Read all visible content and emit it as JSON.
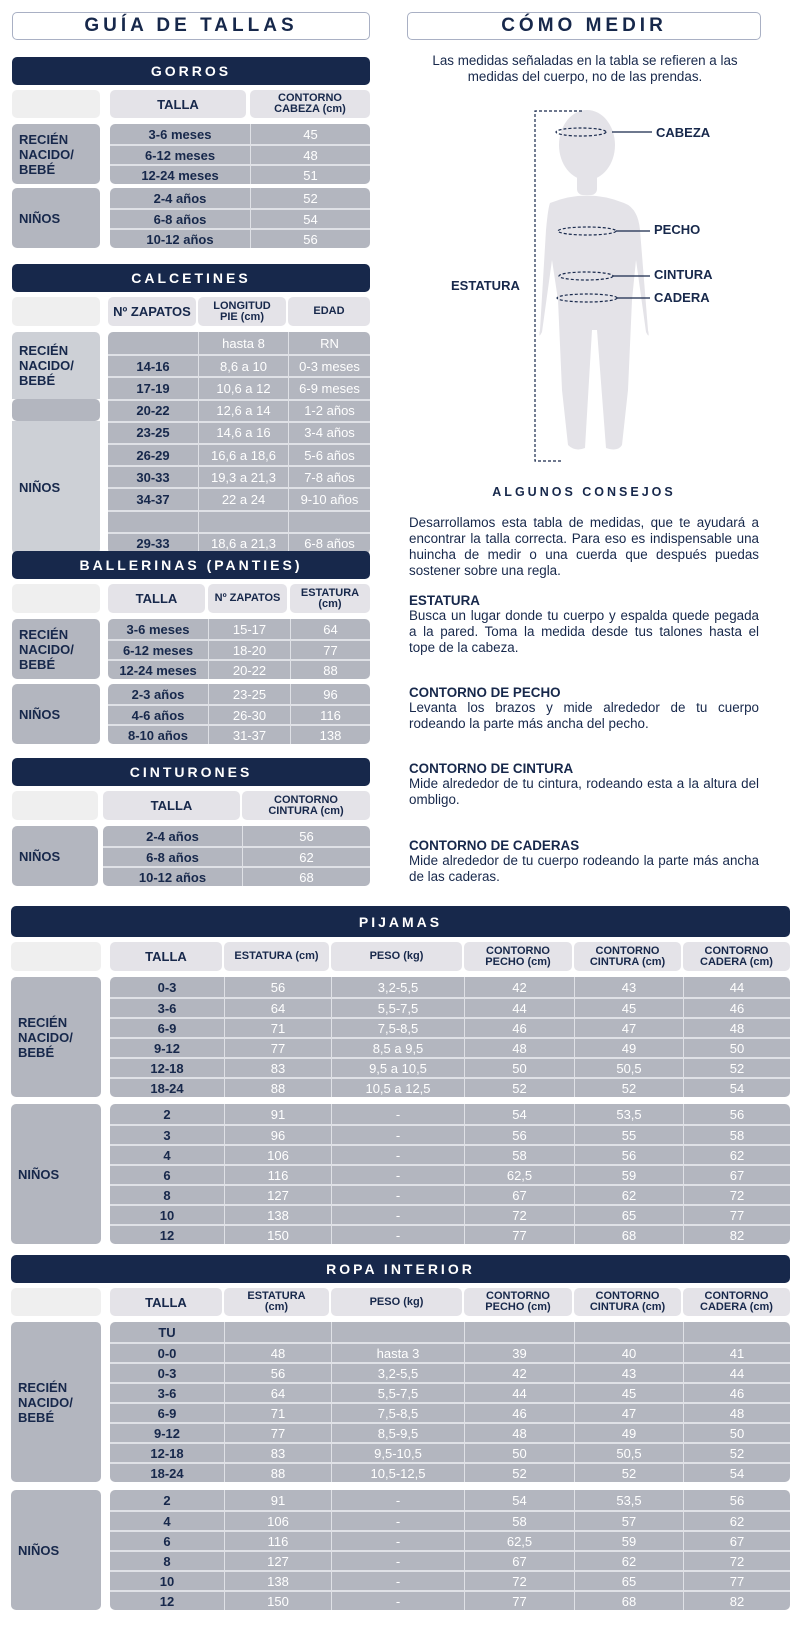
{
  "guide_title": "GUÍA DE TALLAS",
  "how_to_measure": {
    "title": "CÓMO MEDIR",
    "intro": "Las medidas señaladas en la tabla se refieren a las medidas del cuerpo, no de las prendas.",
    "figure_labels": {
      "head": "CABEZA",
      "chest": "PECHO",
      "waist": "CINTURA",
      "hip": "CADERA",
      "height": "ESTATURA"
    }
  },
  "tips": {
    "title": "ALGUNOS CONSEJOS",
    "intro": "Desarrollamos esta tabla de medidas, que te ayudará a encontrar la talla correcta. Para eso es indispensable una huincha de medir o una cuerda que después puedas sostener sobre una regla.",
    "items": [
      {
        "heading": "ESTATURA",
        "text": "Busca un lugar donde tu cuerpo y espalda quede pegada a la pared. Toma la medida desde tus talones hasta el tope de la cabeza."
      },
      {
        "heading": "CONTORNO DE PECHO",
        "text": "Levanta los brazos y mide alrededor de tu cuerpo rodeando la parte más ancha del pecho."
      },
      {
        "heading": "CONTORNO DE CINTURA",
        "text": "Mide alrededor de tu cintura, rodeando esta a la altura del ombligo."
      },
      {
        "heading": "CONTORNO DE CADERAS",
        "text": "Mide alrededor de tu cuerpo rodeando la parte más ancha de las caderas."
      }
    ]
  },
  "colors": {
    "navy": "#17284b",
    "row_gray": "#b3b6bf",
    "header_gray": "#e4e3e8"
  },
  "gorros": {
    "title": "GORROS",
    "columns": [
      "TALLA",
      "CONTORNO\nCABEZA (cm)"
    ],
    "groups": [
      {
        "label": "RECIÉN\nNACIDO/\nBEBÉ",
        "rows": [
          [
            "3-6 meses",
            "45"
          ],
          [
            "6-12 meses",
            "48"
          ],
          [
            "12-24 meses",
            "51"
          ]
        ]
      },
      {
        "label": "NIÑOS",
        "rows": [
          [
            "2-4 años",
            "52"
          ],
          [
            "6-8 años",
            "54"
          ],
          [
            "10-12 años",
            "56"
          ]
        ]
      }
    ]
  },
  "calcetines": {
    "title": "CALCETINES",
    "columns": [
      "Nº ZAPATOS",
      "LONGITUD\nPIE (cm)",
      "EDAD"
    ],
    "groups": [
      {
        "label": "RECIÉN\nNACIDO/\nBEBÉ",
        "rows": [
          [
            "",
            "hasta 8",
            "RN"
          ],
          [
            "14-16",
            "8,6 a 10",
            "0-3 meses"
          ],
          [
            "17-19",
            "10,6 a 12",
            "6-9 meses"
          ]
        ]
      },
      {
        "label": "",
        "rows": [
          [
            "20-22",
            "12,6 a 14",
            "1-2 años"
          ]
        ]
      },
      {
        "label": "NIÑOS",
        "rows": [
          [
            "23-25",
            "14,6 a 16",
            "3-4 años"
          ],
          [
            "26-29",
            "16,6 a 18,6",
            "5-6 años"
          ],
          [
            "30-33",
            "19,3 a 21,3",
            "7-8 años"
          ],
          [
            "34-37",
            "22 a 24",
            "9-10 años"
          ],
          [
            "",
            "",
            ""
          ],
          [
            "29-33",
            "18,6 a 21,3",
            "6-8 años"
          ]
        ]
      }
    ]
  },
  "ballerinas": {
    "title": "BALLERINAS (PANTIES)",
    "columns": [
      "TALLA",
      "Nº ZAPATOS",
      "ESTATURA\n(cm)"
    ],
    "groups": [
      {
        "label": "RECIÉN\nNACIDO/\nBEBÉ",
        "rows": [
          [
            "3-6 meses",
            "15-17",
            "64"
          ],
          [
            "6-12 meses",
            "18-20",
            "77"
          ],
          [
            "12-24 meses",
            "20-22",
            "88"
          ]
        ]
      },
      {
        "label": "NIÑOS",
        "rows": [
          [
            "2-3 años",
            "23-25",
            "96"
          ],
          [
            "4-6 años",
            "26-30",
            "116"
          ],
          [
            "8-10 años",
            "31-37",
            "138"
          ]
        ]
      }
    ]
  },
  "cinturones": {
    "title": "CINTURONES",
    "columns": [
      "TALLA",
      "CONTORNO\nCINTURA (cm)"
    ],
    "groups": [
      {
        "label": "NIÑOS",
        "rows": [
          [
            "2-4 años",
            "56"
          ],
          [
            "6-8 años",
            "62"
          ],
          [
            "10-12 años",
            "68"
          ]
        ]
      }
    ]
  },
  "pijamas": {
    "title": "PIJAMAS",
    "columns": [
      "TALLA",
      "ESTATURA (cm)",
      "PESO (kg)",
      "CONTORNO\nPECHO (cm)",
      "CONTORNO\nCINTURA (cm)",
      "CONTORNO\nCADERA (cm)"
    ],
    "groups": [
      {
        "label": "RECIÉN\nNACIDO/\nBEBÉ",
        "rows": [
          [
            "0-3",
            "56",
            "3,2-5,5",
            "42",
            "43",
            "44"
          ],
          [
            "3-6",
            "64",
            "5,5-7,5",
            "44",
            "45",
            "46"
          ],
          [
            "6-9",
            "71",
            "7,5-8,5",
            "46",
            "47",
            "48"
          ],
          [
            "9-12",
            "77",
            "8,5 a 9,5",
            "48",
            "49",
            "50"
          ],
          [
            "12-18",
            "83",
            "9,5 a 10,5",
            "50",
            "50,5",
            "52"
          ],
          [
            "18-24",
            "88",
            "10,5 a 12,5",
            "52",
            "52",
            "54"
          ]
        ]
      },
      {
        "label": "NIÑOS",
        "rows": [
          [
            "2",
            "91",
            "-",
            "54",
            "53,5",
            "56"
          ],
          [
            "3",
            "96",
            "-",
            "56",
            "55",
            "58"
          ],
          [
            "4",
            "106",
            "-",
            "58",
            "56",
            "62"
          ],
          [
            "6",
            "116",
            "-",
            "62,5",
            "59",
            "67"
          ],
          [
            "8",
            "127",
            "-",
            "67",
            "62",
            "72"
          ],
          [
            "10",
            "138",
            "-",
            "72",
            "65",
            "77"
          ],
          [
            "12",
            "150",
            "-",
            "77",
            "68",
            "82"
          ]
        ]
      }
    ]
  },
  "ropa_interior": {
    "title": "ROPA INTERIOR",
    "columns": [
      "TALLA",
      "ESTATURA\n(cm)",
      "PESO (kg)",
      "CONTORNO\nPECHO (cm)",
      "CONTORNO\nCINTURA (cm)",
      "CONTORNO\nCADERA (cm)"
    ],
    "groups": [
      {
        "label": "RECIÉN\nNACIDO/\nBEBÉ",
        "rows": [
          [
            "TU",
            "",
            "",
            "",
            "",
            ""
          ],
          [
            "0-0",
            "48",
            "hasta 3",
            "39",
            "40",
            "41"
          ],
          [
            "0-3",
            "56",
            "3,2-5,5",
            "42",
            "43",
            "44"
          ],
          [
            "3-6",
            "64",
            "5,5-7,5",
            "44",
            "45",
            "46"
          ],
          [
            "6-9",
            "71",
            "7,5-8,5",
            "46",
            "47",
            "48"
          ],
          [
            "9-12",
            "77",
            "8,5-9,5",
            "48",
            "49",
            "50"
          ],
          [
            "12-18",
            "83",
            "9,5-10,5",
            "50",
            "50,5",
            "52"
          ],
          [
            "18-24",
            "88",
            "10,5-12,5",
            "52",
            "52",
            "54"
          ]
        ]
      },
      {
        "label": "NIÑOS",
        "rows": [
          [
            "2",
            "91",
            "-",
            "54",
            "53,5",
            "56"
          ],
          [
            "4",
            "106",
            "-",
            "58",
            "57",
            "62"
          ],
          [
            "6",
            "116",
            "-",
            "62,5",
            "59",
            "67"
          ],
          [
            "8",
            "127",
            "-",
            "67",
            "62",
            "72"
          ],
          [
            "10",
            "138",
            "-",
            "72",
            "65",
            "77"
          ],
          [
            "12",
            "150",
            "-",
            "77",
            "68",
            "82"
          ]
        ]
      }
    ]
  }
}
